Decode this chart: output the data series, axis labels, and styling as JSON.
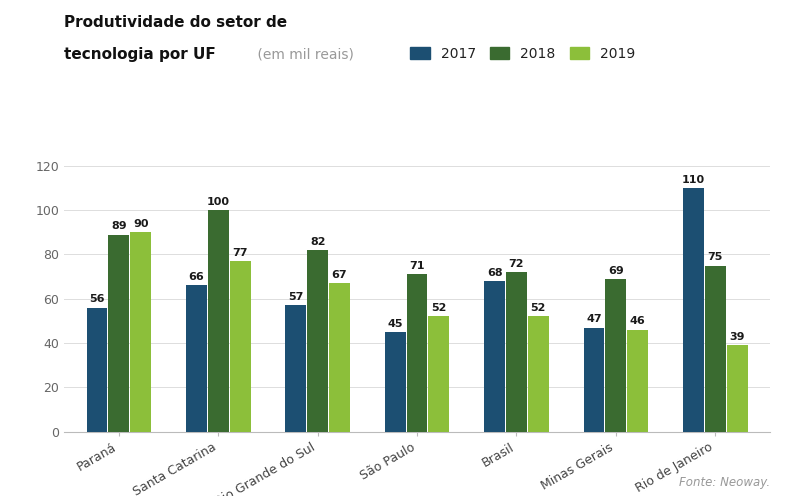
{
  "title_bold": "Produtividade do setor de\ntecnologia por UF",
  "title_light": "(em mil reais)",
  "categories": [
    "Paraná",
    "Santa Catarina",
    "Rio Grande do Sul",
    "São Paulo",
    "Brasil",
    "Minas Gerais",
    "Rio de Janeiro"
  ],
  "series": {
    "2017": [
      56,
      66,
      57,
      45,
      68,
      47,
      110
    ],
    "2018": [
      89,
      100,
      82,
      71,
      72,
      69,
      75
    ],
    "2019": [
      90,
      77,
      67,
      52,
      52,
      46,
      39
    ]
  },
  "colors": {
    "2017": "#1c4f72",
    "2018": "#3a6b30",
    "2019": "#8cbf3a"
  },
  "ylim": [
    0,
    130
  ],
  "yticks": [
    0,
    20,
    40,
    60,
    80,
    100,
    120
  ],
  "legend_labels": [
    "2017",
    "2018",
    "2019"
  ],
  "fonte": "Fonte: Neoway.",
  "bar_width": 0.21,
  "background_color": "#ffffff",
  "label_fontsize": 8.0,
  "tick_fontsize": 9,
  "legend_fontsize": 10,
  "title_fontsize": 11
}
